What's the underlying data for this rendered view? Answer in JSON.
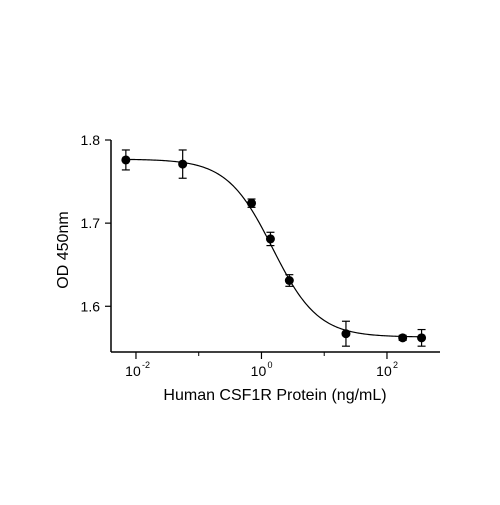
{
  "chart_data": {
    "type": "scatter",
    "title": "",
    "xlabel": "Human CSF1R Protein (ng/mL)",
    "ylabel": "OD 450nm",
    "x_scale": "log",
    "xlim": [
      0.004,
      700
    ],
    "ylim": [
      1.545,
      1.8
    ],
    "x_ticks": [
      {
        "value": 0.01,
        "base": "10",
        "exp": "-2"
      },
      {
        "value": 1,
        "base": "10",
        "exp": "0"
      },
      {
        "value": 100,
        "base": "10",
        "exp": "2"
      }
    ],
    "y_ticks": [
      {
        "value": 1.6,
        "label": "1.6"
      },
      {
        "value": 1.7,
        "label": "1.7"
      },
      {
        "value": 1.8,
        "label": "1.8"
      }
    ],
    "grid": false,
    "legend": "none",
    "series": [
      {
        "points": [
          {
            "x": 0.0069,
            "y": 1.776,
            "err": 0.012
          },
          {
            "x": 0.0555,
            "y": 1.771,
            "err": 0.017
          },
          {
            "x": 0.694,
            "y": 1.724,
            "err": 0.005
          },
          {
            "x": 1.39,
            "y": 1.681,
            "err": 0.008
          },
          {
            "x": 2.78,
            "y": 1.631,
            "err": 0.007
          },
          {
            "x": 22.2,
            "y": 1.567,
            "err": 0.015
          },
          {
            "x": 178,
            "y": 1.562,
            "err": 0.003
          },
          {
            "x": 356,
            "y": 1.562,
            "err": 0.01
          }
        ],
        "fit": {
          "top": 1.777,
          "bottom": 1.563,
          "ec50": 1.5,
          "hill": 1.2
        }
      }
    ],
    "colors": {
      "marker": "#000000",
      "line": "#000000",
      "axis": "#000000"
    }
  }
}
